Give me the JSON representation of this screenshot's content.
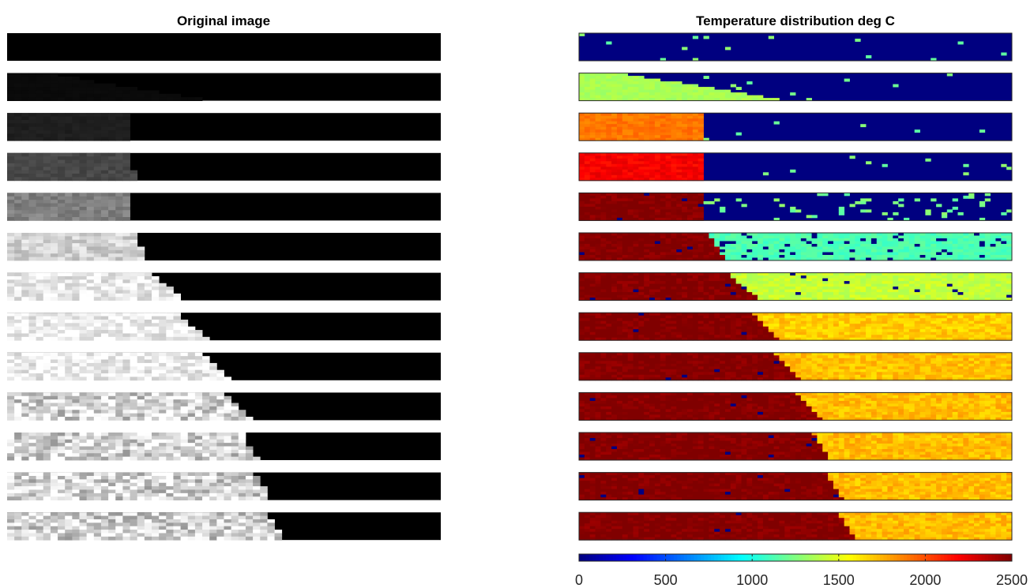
{
  "chart_data": [
    {
      "type": "heatmap",
      "title": "Original image",
      "colormap": "gray",
      "frames": 13,
      "description_note": "",
      "frame_data": [
        {
          "frame": 1,
          "hot_fraction": 0.0,
          "hot_intensity": 0.0
        },
        {
          "frame": 2,
          "hot_fraction": 0.28,
          "hot_intensity": 0.04
        },
        {
          "frame": 3,
          "hot_fraction": 0.28,
          "hot_intensity": 0.12
        },
        {
          "frame": 4,
          "hot_fraction": 0.29,
          "hot_intensity": 0.28
        },
        {
          "frame": 5,
          "hot_fraction": 0.29,
          "hot_intensity": 0.5
        },
        {
          "frame": 6,
          "hot_fraction": 0.31,
          "hot_intensity": 0.82
        },
        {
          "frame": 7,
          "hot_fraction": 0.37,
          "hot_intensity": 0.92
        },
        {
          "frame": 8,
          "hot_fraction": 0.43,
          "hot_intensity": 0.93
        },
        {
          "frame": 9,
          "hot_fraction": 0.48,
          "hot_intensity": 0.93
        },
        {
          "frame": 10,
          "hot_fraction": 0.53,
          "hot_intensity": 0.93
        },
        {
          "frame": 11,
          "hot_fraction": 0.56,
          "hot_intensity": 0.92
        },
        {
          "frame": 12,
          "hot_fraction": 0.59,
          "hot_intensity": 0.92
        },
        {
          "frame": 13,
          "hot_fraction": 0.62,
          "hot_intensity": 0.92
        }
      ]
    },
    {
      "type": "heatmap",
      "title": "Temperature distribution deg C",
      "colormap": "jet",
      "clim": [
        0,
        2500
      ],
      "colorbar_ticks": [
        0,
        500,
        1000,
        1500,
        2000,
        2500
      ],
      "frames": 13,
      "frame_data": [
        {
          "frame": 1,
          "hot_fraction": 0.0,
          "hot_temp": 0,
          "cold_temp": 0
        },
        {
          "frame": 2,
          "hot_fraction": 0.29,
          "hot_temp": 1350,
          "cold_temp": 0
        },
        {
          "frame": 3,
          "hot_fraction": 0.29,
          "hot_temp": 1900,
          "cold_temp": 0
        },
        {
          "frame": 4,
          "hot_fraction": 0.29,
          "hot_temp": 2200,
          "cold_temp": 0
        },
        {
          "frame": 5,
          "hot_fraction": 0.29,
          "hot_temp": 2500,
          "cold_temp": 0
        },
        {
          "frame": 6,
          "hot_fraction": 0.32,
          "hot_temp": 2500,
          "cold_temp": 1150
        },
        {
          "frame": 7,
          "hot_fraction": 0.38,
          "hot_temp": 2500,
          "cold_temp": 1450
        },
        {
          "frame": 8,
          "hot_fraction": 0.43,
          "hot_temp": 2500,
          "cold_temp": 1720
        },
        {
          "frame": 9,
          "hot_fraction": 0.48,
          "hot_temp": 2500,
          "cold_temp": 1750
        },
        {
          "frame": 10,
          "hot_fraction": 0.53,
          "hot_temp": 2500,
          "cold_temp": 1760
        },
        {
          "frame": 11,
          "hot_fraction": 0.56,
          "hot_temp": 2500,
          "cold_temp": 1760
        },
        {
          "frame": 12,
          "hot_fraction": 0.59,
          "hot_temp": 2500,
          "cold_temp": 1760
        },
        {
          "frame": 13,
          "hot_fraction": 0.62,
          "hot_temp": 2500,
          "cold_temp": 1760
        }
      ]
    }
  ]
}
